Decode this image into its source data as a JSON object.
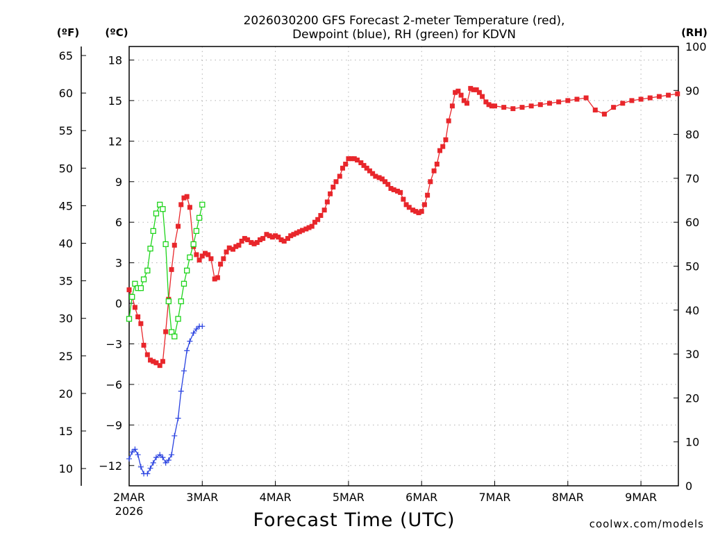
{
  "chart_data": {
    "type": "line",
    "title_line1": "2026030200 GFS Forecast 2-meter Temperature (red),",
    "title_line2": "Dewpoint (blue), RH (green) for KDVN",
    "xlabel": "Forecast Time (UTC)",
    "watermark": "coolwx.com/models",
    "units": {
      "left_outer": "(ºF)",
      "left_inner": "(ºC)",
      "right": "(RH)"
    },
    "x_tick_labels": [
      "2MAR",
      "3MAR",
      "4MAR",
      "5MAR",
      "6MAR",
      "7MAR",
      "8MAR",
      "9MAR"
    ],
    "x_first_sub": "2026",
    "x_range_days": [
      0,
      7.5
    ],
    "ylim_c": [
      -13.5,
      19
    ],
    "yticks_c": [
      -12,
      -9,
      -6,
      -3,
      0,
      3,
      6,
      9,
      12,
      15,
      18
    ],
    "yticks_f": [
      10,
      15,
      20,
      25,
      30,
      35,
      40,
      45,
      50,
      55,
      60,
      65
    ],
    "ylim_rh": [
      0,
      100
    ],
    "yticks_rh": [
      0,
      10,
      20,
      30,
      40,
      50,
      60,
      70,
      80,
      90,
      100
    ],
    "colors": {
      "temperature": "#e8262b",
      "dewpoint": "#2841e0",
      "rh": "#1dd41a",
      "grid": "#b0b0b0",
      "watermark": "#e8262b"
    },
    "series": [
      {
        "name": "Temperature (°C)",
        "x": [
          0,
          0.04,
          0.08,
          0.12,
          0.16,
          0.2,
          0.25,
          0.29,
          0.33,
          0.37,
          0.42,
          0.46,
          0.5,
          0.54,
          0.58,
          0.62,
          0.67,
          0.71,
          0.75,
          0.79,
          0.83,
          0.88,
          0.92,
          0.96,
          1.0,
          1.04,
          1.08,
          1.12,
          1.17,
          1.21,
          1.25,
          1.29,
          1.33,
          1.37,
          1.42,
          1.46,
          1.5,
          1.54,
          1.58,
          1.62,
          1.67,
          1.71,
          1.75,
          1.79,
          1.83,
          1.88,
          1.92,
          1.96,
          2.0,
          2.04,
          2.08,
          2.12,
          2.17,
          2.21,
          2.25,
          2.29,
          2.33,
          2.37,
          2.42,
          2.46,
          2.5,
          2.54,
          2.58,
          2.62,
          2.67,
          2.71,
          2.75,
          2.79,
          2.83,
          2.88,
          2.92,
          2.96,
          3.0,
          3.04,
          3.08,
          3.12,
          3.17,
          3.21,
          3.25,
          3.29,
          3.33,
          3.37,
          3.42,
          3.46,
          3.5,
          3.54,
          3.58,
          3.62,
          3.67,
          3.71,
          3.75,
          3.79,
          3.83,
          3.88,
          3.92,
          3.96,
          4.0,
          4.04,
          4.08,
          4.12,
          4.17,
          4.21,
          4.25,
          4.29,
          4.33,
          4.37,
          4.42,
          4.46,
          4.5,
          4.54,
          4.58,
          4.62,
          4.67,
          4.71,
          4.75,
          4.79,
          4.83,
          4.88,
          4.92,
          4.96,
          5.0,
          5.125,
          5.25,
          5.375,
          5.5,
          5.625,
          5.75,
          5.875,
          6.0,
          6.125,
          6.25,
          6.375,
          6.5,
          6.625,
          6.75,
          6.875,
          7.0,
          7.125,
          7.25,
          7.375,
          7.5
        ],
        "values": [
          1.0,
          0.5,
          -0.3,
          -1.0,
          -1.5,
          -3.1,
          -3.8,
          -4.2,
          -4.3,
          -4.4,
          -4.6,
          -4.3,
          -2.1,
          0.3,
          2.5,
          4.3,
          5.7,
          7.3,
          7.8,
          7.9,
          7.1,
          4.2,
          3.6,
          3.2,
          3.5,
          3.7,
          3.6,
          3.3,
          1.8,
          1.9,
          2.9,
          3.3,
          3.8,
          4.1,
          4.0,
          4.2,
          4.3,
          4.6,
          4.8,
          4.7,
          4.5,
          4.4,
          4.5,
          4.7,
          4.8,
          5.1,
          5.0,
          4.9,
          5.0,
          4.9,
          4.7,
          4.6,
          4.8,
          5.0,
          5.1,
          5.2,
          5.3,
          5.4,
          5.5,
          5.6,
          5.7,
          6.0,
          6.2,
          6.5,
          6.9,
          7.5,
          8.1,
          8.6,
          9.0,
          9.4,
          10.0,
          10.3,
          10.7,
          10.7,
          10.7,
          10.6,
          10.4,
          10.2,
          10.0,
          9.8,
          9.6,
          9.4,
          9.3,
          9.2,
          9.0,
          8.8,
          8.5,
          8.4,
          8.3,
          8.2,
          7.7,
          7.3,
          7.1,
          6.9,
          6.8,
          6.7,
          6.8,
          7.3,
          8.0,
          9.0,
          9.8,
          10.3,
          11.3,
          11.6,
          12.1,
          13.5,
          14.6,
          15.6,
          15.7,
          15.4,
          15.0,
          14.8,
          15.9,
          15.8,
          15.8,
          15.6,
          15.3,
          14.9,
          14.7,
          14.6,
          14.6,
          14.5,
          14.4,
          14.5,
          14.6,
          14.7,
          14.8,
          14.9,
          15.0,
          15.1,
          15.2,
          14.3,
          14.0,
          14.5,
          14.8,
          15.0,
          15.1,
          15.2,
          15.3,
          15.4,
          15.5
        ]
      },
      {
        "name": "Dewpoint (°C)",
        "x": [
          0,
          0.04,
          0.08,
          0.12,
          0.16,
          0.2,
          0.25,
          0.29,
          0.33,
          0.37,
          0.42,
          0.46,
          0.5,
          0.54,
          0.58,
          0.62,
          0.67,
          0.71,
          0.75,
          0.79,
          0.83,
          0.88,
          0.92,
          0.96,
          1.0
        ],
        "values": [
          -11.5,
          -11.0,
          -10.8,
          -11.2,
          -12.1,
          -12.6,
          -12.6,
          -12.2,
          -11.8,
          -11.4,
          -11.2,
          -11.4,
          -11.8,
          -11.6,
          -11.2,
          -9.8,
          -8.5,
          -6.5,
          -5.0,
          -3.5,
          -2.8,
          -2.2,
          -1.9,
          -1.7,
          -1.7
        ]
      },
      {
        "name": "RH (%)",
        "x": [
          0,
          0.04,
          0.08,
          0.12,
          0.16,
          0.2,
          0.25,
          0.29,
          0.33,
          0.37,
          0.42,
          0.46,
          0.5,
          0.54,
          0.58,
          0.62,
          0.67,
          0.71,
          0.75,
          0.79,
          0.83,
          0.88,
          0.92,
          0.96,
          1.0
        ],
        "values": [
          38,
          43,
          46,
          45,
          45,
          47,
          49,
          54,
          58,
          62,
          64,
          63,
          55,
          42,
          35,
          34,
          38,
          42,
          46,
          49,
          52,
          55,
          58,
          61,
          64
        ]
      }
    ]
  }
}
